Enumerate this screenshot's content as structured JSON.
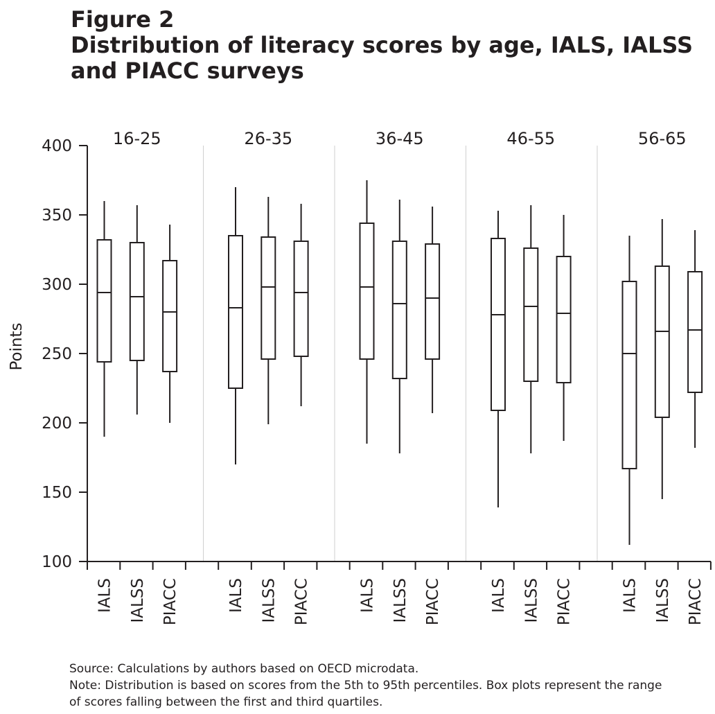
{
  "figure": {
    "title_line1": "Figure 2",
    "title_line2": "Distribution of literacy scores by age, IALS, IALSS",
    "title_line3": "and PIACC surveys"
  },
  "chart_data": {
    "type": "boxplot",
    "ylabel": "Points",
    "ylim": [
      100,
      400
    ],
    "yticks": [
      "100",
      "150",
      "200",
      "250",
      "300",
      "350",
      "400"
    ],
    "grid": false,
    "separators_between_groups": true,
    "groups": [
      {
        "label": "16-25",
        "boxes": [
          {
            "category": "IALS",
            "whisker_low": 190,
            "q1": 244,
            "median": 294,
            "q3": 332,
            "whisker_high": 360
          },
          {
            "category": "IALSS",
            "whisker_low": 206,
            "q1": 245,
            "median": 291,
            "q3": 330,
            "whisker_high": 357
          },
          {
            "category": "PIACC",
            "whisker_low": 200,
            "q1": 237,
            "median": 280,
            "q3": 317,
            "whisker_high": 343
          }
        ]
      },
      {
        "label": "26-35",
        "boxes": [
          {
            "category": "IALS",
            "whisker_low": 170,
            "q1": 225,
            "median": 283,
            "q3": 335,
            "whisker_high": 370
          },
          {
            "category": "IALSS",
            "whisker_low": 199,
            "q1": 246,
            "median": 298,
            "q3": 334,
            "whisker_high": 363
          },
          {
            "category": "PIACC",
            "whisker_low": 212,
            "q1": 248,
            "median": 294,
            "q3": 331,
            "whisker_high": 358
          }
        ]
      },
      {
        "label": "36-45",
        "boxes": [
          {
            "category": "IALS",
            "whisker_low": 185,
            "q1": 246,
            "median": 298,
            "q3": 344,
            "whisker_high": 375
          },
          {
            "category": "IALSS",
            "whisker_low": 178,
            "q1": 232,
            "median": 286,
            "q3": 331,
            "whisker_high": 361
          },
          {
            "category": "PIACC",
            "whisker_low": 207,
            "q1": 246,
            "median": 290,
            "q3": 329,
            "whisker_high": 356
          }
        ]
      },
      {
        "label": "46-55",
        "boxes": [
          {
            "category": "IALS",
            "whisker_low": 139,
            "q1": 209,
            "median": 278,
            "q3": 333,
            "whisker_high": 353
          },
          {
            "category": "IALSS",
            "whisker_low": 178,
            "q1": 230,
            "median": 284,
            "q3": 326,
            "whisker_high": 357
          },
          {
            "category": "PIACC",
            "whisker_low": 187,
            "q1": 229,
            "median": 279,
            "q3": 320,
            "whisker_high": 350
          }
        ]
      },
      {
        "label": "56-65",
        "boxes": [
          {
            "category": "IALS",
            "whisker_low": 112,
            "q1": 167,
            "median": 250,
            "q3": 302,
            "whisker_high": 335
          },
          {
            "category": "IALSS",
            "whisker_low": 145,
            "q1": 204,
            "median": 266,
            "q3": 313,
            "whisker_high": 347
          },
          {
            "category": "PIACC",
            "whisker_low": 182,
            "q1": 222,
            "median": 267,
            "q3": 309,
            "whisker_high": 339
          }
        ]
      }
    ]
  },
  "notes": {
    "source": "Source: Calculations by authors based on OECD microdata.",
    "note_line1": "Note: Distribution is based on scores from the 5th to 95th percentiles. Box plots represent the range",
    "note_line2": "of scores falling between the first and third quartiles."
  },
  "colors": {
    "ink": "#231f20",
    "separator": "#cfcfcf",
    "background": "#ffffff"
  }
}
